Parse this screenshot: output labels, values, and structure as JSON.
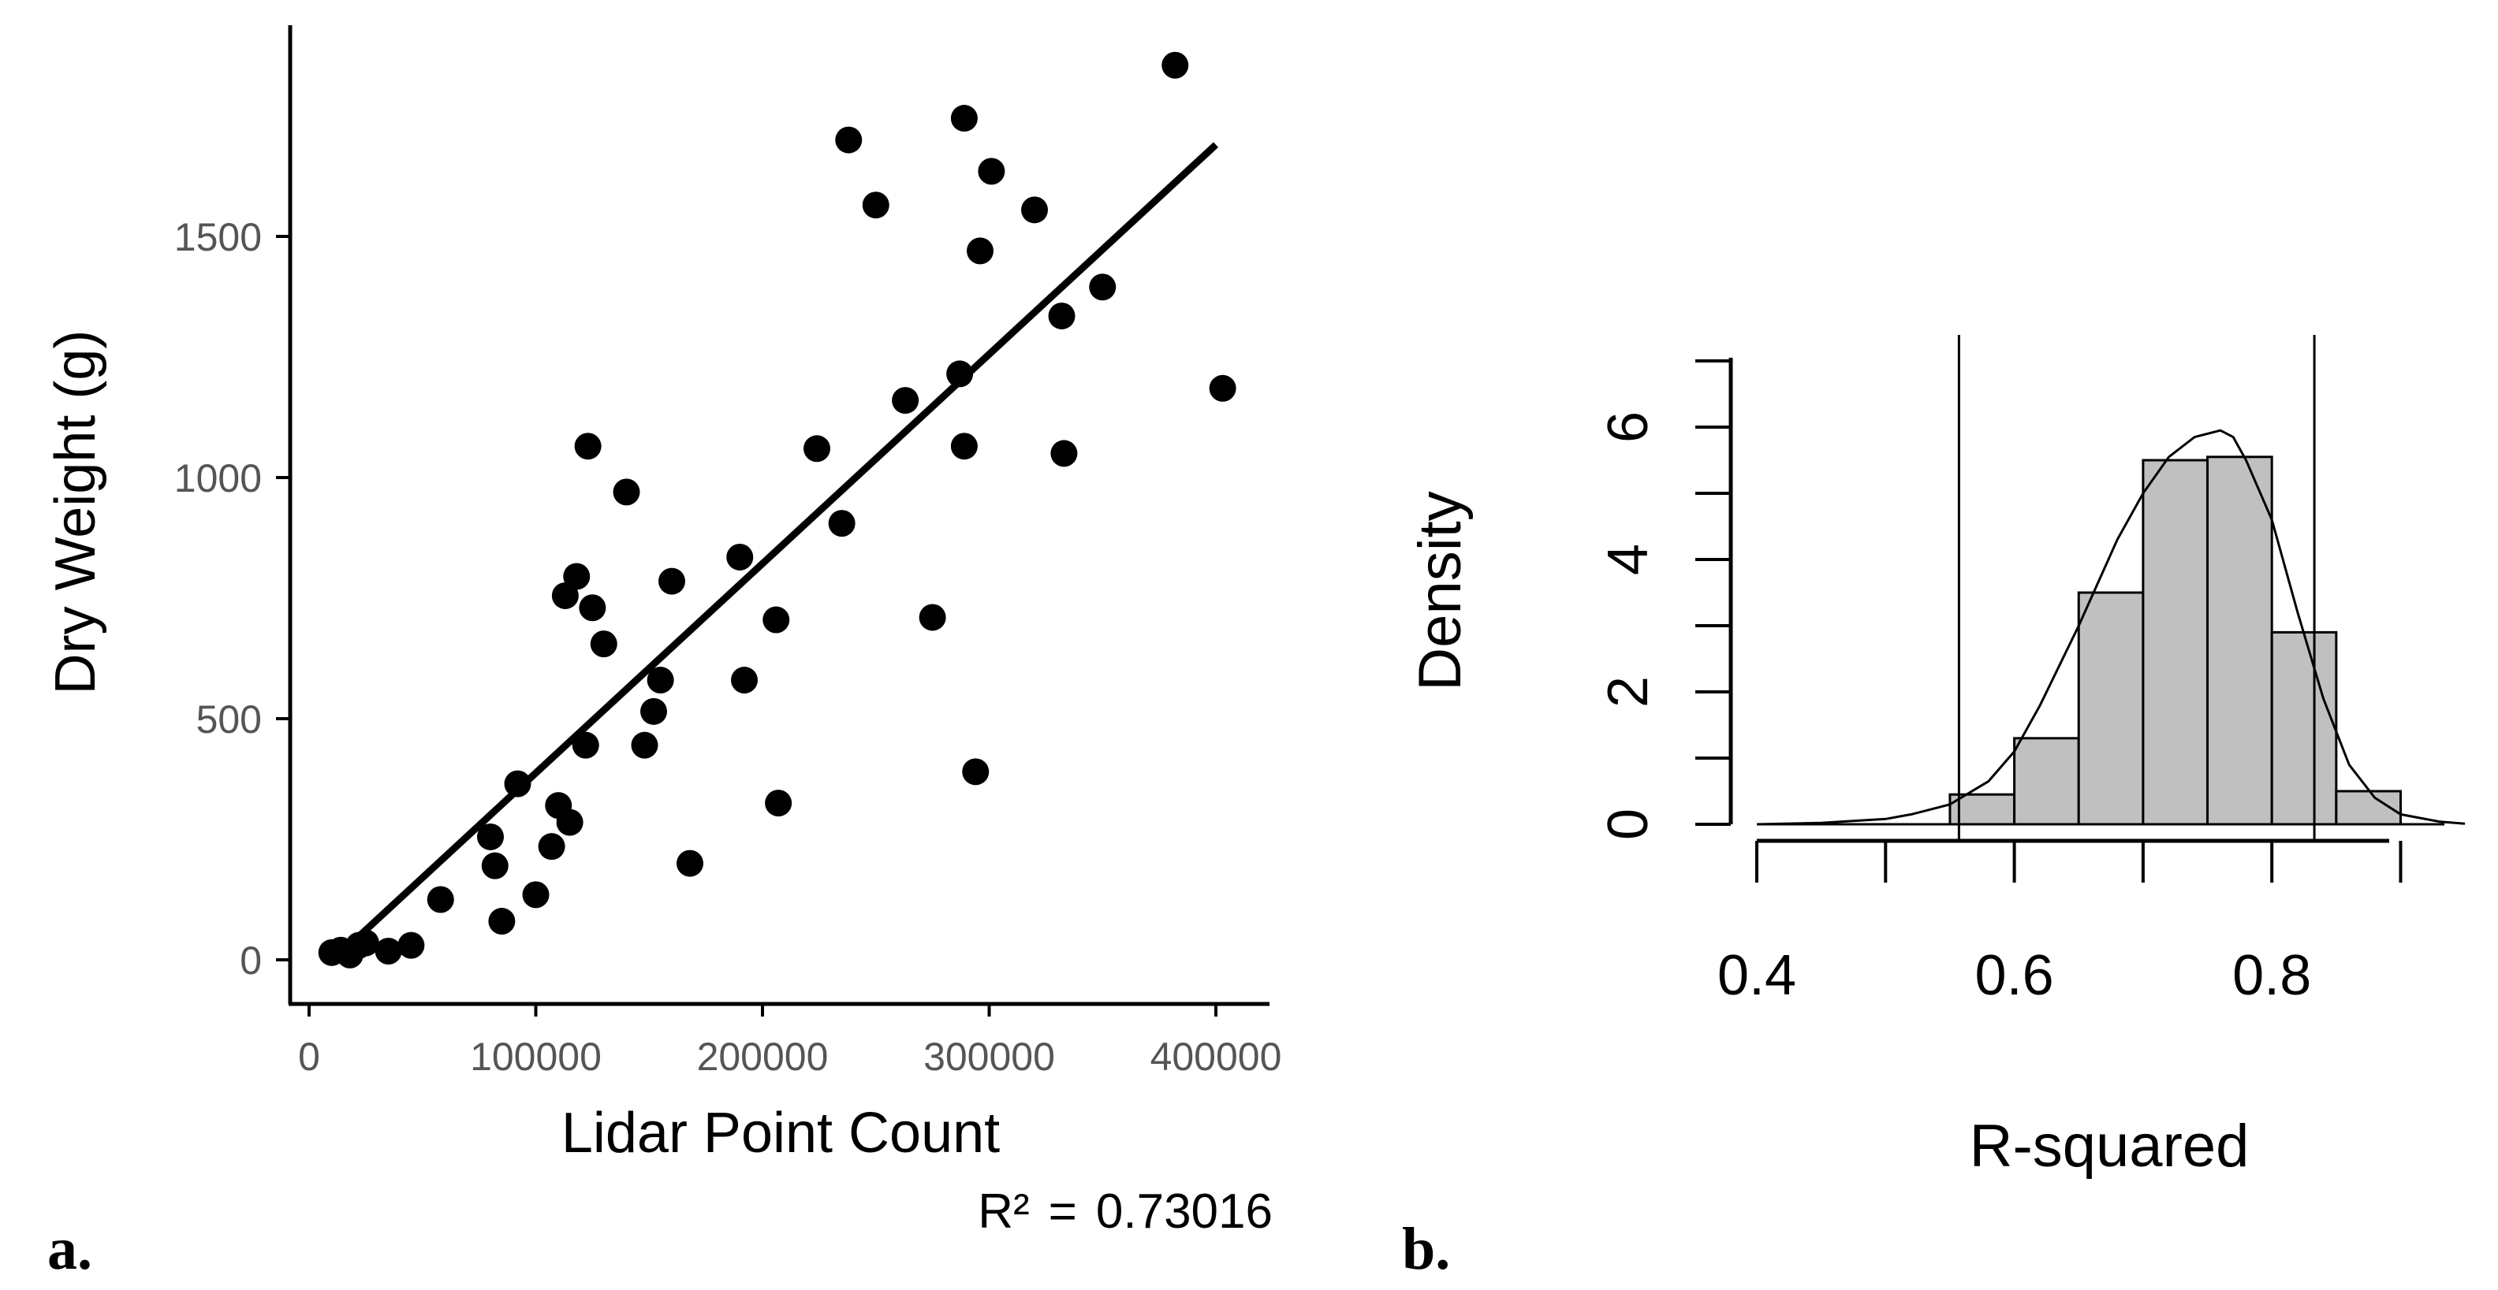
{
  "labels": {
    "panel_a": "a.",
    "panel_b": "b.",
    "r2_prefix": "R²",
    "r2_eq": "=",
    "r2_value": "0.73016"
  },
  "chart_data": [
    {
      "type": "scatter",
      "panel": "a.",
      "xlabel": "Lidar Point Count",
      "ylabel": "Dry Weight (g)",
      "xlim": [
        -5000,
        420000
      ],
      "ylim": [
        -100,
        1950
      ],
      "xticks": [
        0,
        100000,
        200000,
        300000,
        400000
      ],
      "xtick_labels": [
        "0",
        "100000",
        "200000",
        "300000",
        "400000"
      ],
      "yticks": [
        0,
        500,
        1000,
        1500
      ],
      "ytick_labels": [
        "0",
        "500",
        "1000",
        "1500"
      ],
      "grid": false,
      "annotation": "R² = 0.73016",
      "fit_line": {
        "x": [
          20000,
          400000
        ],
        "y": [
          40,
          1690
        ]
      },
      "points": [
        [
          10000,
          15
        ],
        [
          14000,
          20
        ],
        [
          18000,
          10
        ],
        [
          22000,
          30
        ],
        [
          25000,
          35
        ],
        [
          35000,
          18
        ],
        [
          45000,
          30
        ],
        [
          58000,
          125
        ],
        [
          80000,
          255
        ],
        [
          82000,
          195
        ],
        [
          85000,
          80
        ],
        [
          92000,
          365
        ],
        [
          100000,
          135
        ],
        [
          107000,
          235
        ],
        [
          110000,
          320
        ],
        [
          115000,
          285
        ],
        [
          113000,
          755
        ],
        [
          118000,
          795
        ],
        [
          122000,
          445
        ],
        [
          123000,
          1065
        ],
        [
          125000,
          730
        ],
        [
          130000,
          655
        ],
        [
          140000,
          970
        ],
        [
          148000,
          445
        ],
        [
          152000,
          515
        ],
        [
          155000,
          580
        ],
        [
          160000,
          785
        ],
        [
          168000,
          200
        ],
        [
          190000,
          835
        ],
        [
          192000,
          580
        ],
        [
          206000,
          705
        ],
        [
          207000,
          325
        ],
        [
          224000,
          1060
        ],
        [
          235000,
          905
        ],
        [
          238000,
          1700
        ],
        [
          250000,
          1565
        ],
        [
          263000,
          1160
        ],
        [
          275000,
          710
        ],
        [
          287000,
          1215
        ],
        [
          289000,
          1745
        ],
        [
          289000,
          1065
        ],
        [
          294000,
          390
        ],
        [
          296000,
          1470
        ],
        [
          301000,
          1635
        ],
        [
          320000,
          1555
        ],
        [
          332000,
          1335
        ],
        [
          333000,
          1050
        ],
        [
          350000,
          1395
        ],
        [
          382000,
          1855
        ],
        [
          403000,
          1185
        ]
      ]
    },
    {
      "type": "bar",
      "panel": "b.",
      "xlabel": "R-squared",
      "ylabel": "Density",
      "xlim": [
        0.4,
        0.95
      ],
      "ylim": [
        0,
        7
      ],
      "xticks": [
        0.4,
        0.5,
        0.6,
        0.7,
        0.8,
        0.9
      ],
      "xtick_labels": [
        "0.4",
        "",
        "0.6",
        "",
        "0.8",
        ""
      ],
      "yticks": [
        0,
        1,
        2,
        3,
        4,
        5,
        6,
        7
      ],
      "ytick_labels": [
        "0",
        "",
        "2",
        "",
        "4",
        "",
        "6",
        ""
      ],
      "histogram": {
        "bins": [
          [
            0.55,
            0.6
          ],
          [
            0.6,
            0.65
          ],
          [
            0.65,
            0.7
          ],
          [
            0.7,
            0.75
          ],
          [
            0.75,
            0.8
          ],
          [
            0.8,
            0.85
          ],
          [
            0.85,
            0.9
          ]
        ],
        "density": [
          0.45,
          1.3,
          3.5,
          5.5,
          5.55,
          2.9,
          0.5
        ]
      },
      "density_curve": {
        "x": [
          0.4,
          0.45,
          0.5,
          0.52,
          0.55,
          0.58,
          0.6,
          0.62,
          0.65,
          0.68,
          0.7,
          0.72,
          0.74,
          0.76,
          0.77,
          0.78,
          0.8,
          0.82,
          0.84,
          0.86,
          0.88,
          0.9,
          0.93,
          0.95
        ],
        "y": [
          0.0,
          0.02,
          0.08,
          0.15,
          0.3,
          0.65,
          1.1,
          1.8,
          3.0,
          4.3,
          5.0,
          5.55,
          5.85,
          5.95,
          5.85,
          5.5,
          4.6,
          3.2,
          1.9,
          0.9,
          0.4,
          0.15,
          0.04,
          0.01
        ]
      },
      "reference_lines_x": [
        0.557,
        0.833
      ]
    }
  ]
}
